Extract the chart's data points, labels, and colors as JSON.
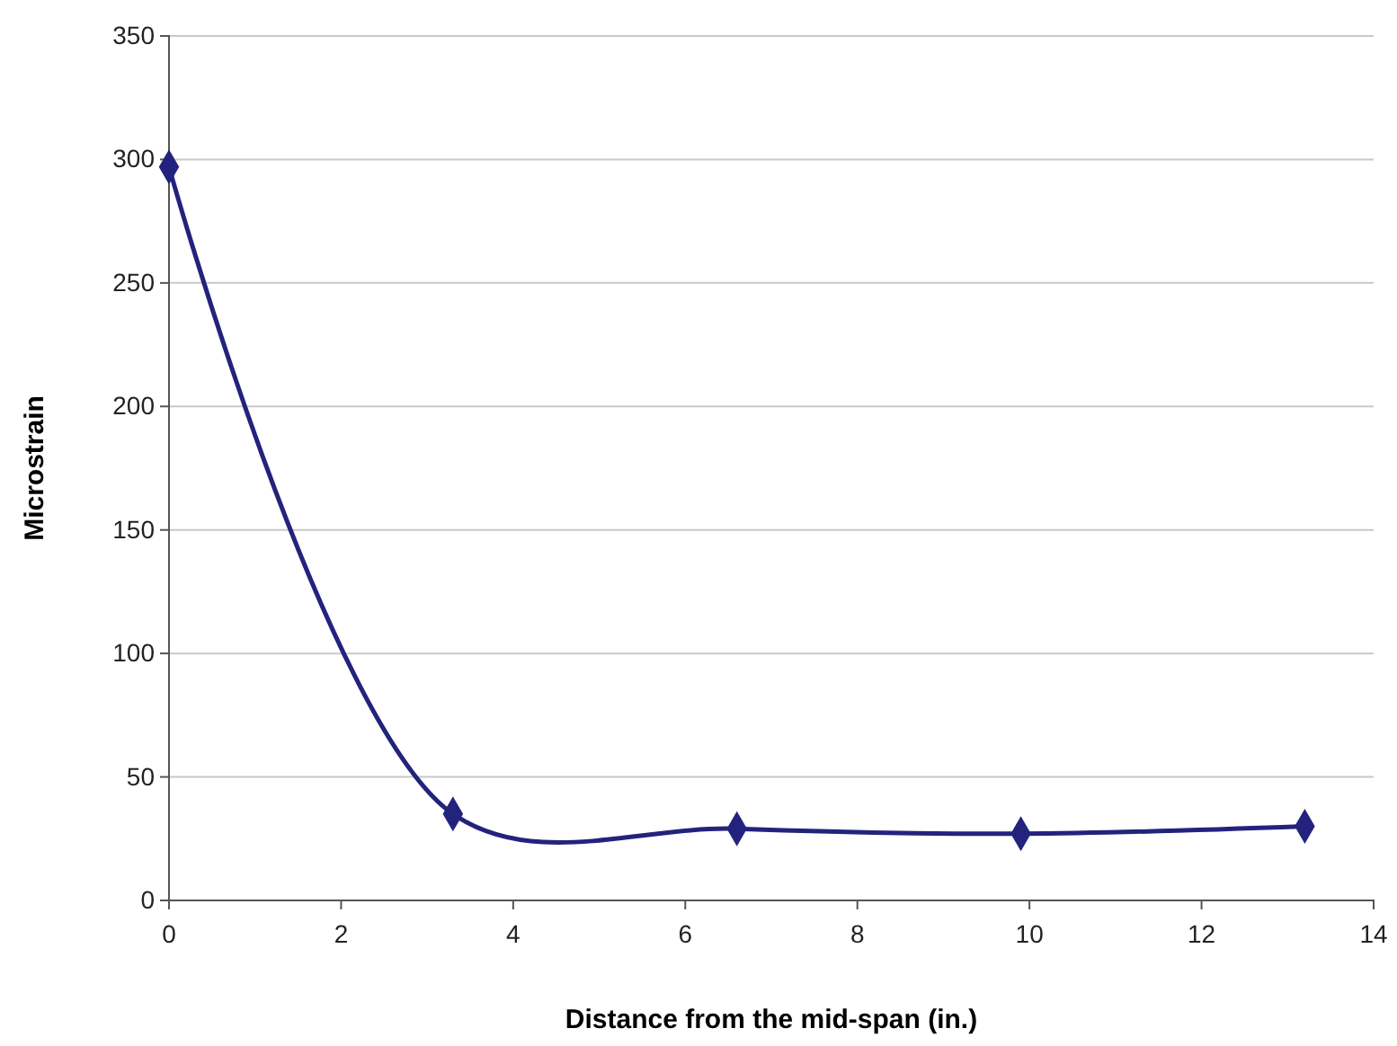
{
  "chart_data": {
    "type": "line",
    "xlabel": "Distance from the mid-span (in.)",
    "ylabel": "Microstrain",
    "x": [
      0,
      3.3,
      6.6,
      9.9,
      13.2
    ],
    "series": [
      {
        "color": "#23237e",
        "values": [
          297,
          35,
          29,
          27,
          30
        ]
      }
    ],
    "xlim": [
      0,
      14
    ],
    "xticks": [
      0,
      2,
      4,
      6,
      8,
      10,
      12,
      14
    ],
    "ylim": [
      0,
      350
    ],
    "yticks": [
      0,
      50,
      100,
      150,
      200,
      250,
      300,
      350
    ],
    "grid": "y",
    "marker": "diamond",
    "line_style": "solid"
  }
}
